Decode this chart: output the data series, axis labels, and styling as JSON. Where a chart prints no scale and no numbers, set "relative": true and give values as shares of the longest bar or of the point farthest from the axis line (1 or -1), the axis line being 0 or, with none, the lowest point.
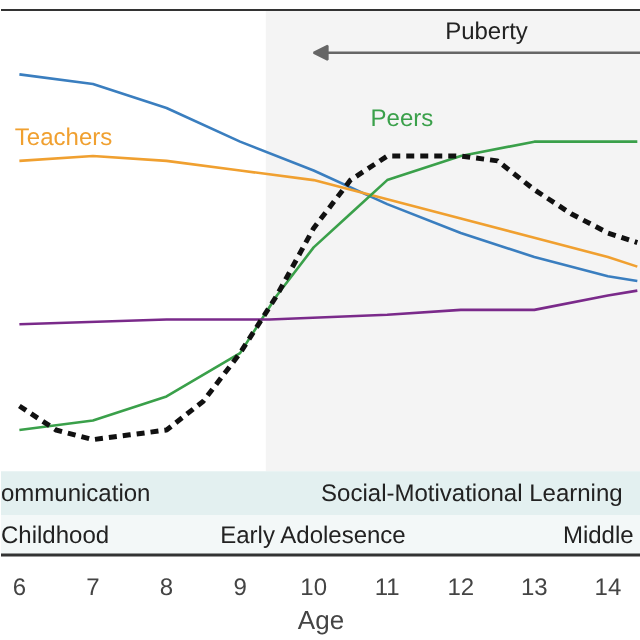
{
  "chart_data": {
    "type": "line",
    "relative": true,
    "xlabel": "Age",
    "xlim": [
      5.75,
      14.45
    ],
    "xticks": [
      6,
      7,
      8,
      9,
      10,
      11,
      12,
      13,
      14
    ],
    "grid": false,
    "series": [
      {
        "color": "#3a7ebf",
        "x": [
          6,
          7,
          8,
          9,
          10,
          11,
          12,
          13,
          14,
          14.4
        ],
        "values": [
          1.0,
          0.98,
          0.93,
          0.86,
          0.8,
          0.73,
          0.67,
          0.62,
          0.58,
          0.57
        ]
      },
      {
        "name": "Teachers",
        "color": "#f0a030",
        "x": [
          6,
          7,
          8,
          9,
          10,
          11,
          12,
          13,
          14,
          14.4
        ],
        "values": [
          0.82,
          0.83,
          0.82,
          0.8,
          0.78,
          0.74,
          0.7,
          0.66,
          0.62,
          0.6
        ]
      },
      {
        "name": "Peers",
        "color": "#3aa04a",
        "x": [
          6,
          7,
          8,
          9,
          9.5,
          10,
          10.5,
          11,
          12,
          13,
          14,
          14.4
        ],
        "values": [
          0.26,
          0.28,
          0.33,
          0.42,
          0.54,
          0.64,
          0.71,
          0.78,
          0.83,
          0.86,
          0.86,
          0.86
        ]
      },
      {
        "color": "#7a2a8a",
        "x": [
          6,
          8,
          9.4,
          11,
          12,
          13,
          14,
          14.4
        ],
        "values": [
          0.48,
          0.49,
          0.49,
          0.5,
          0.51,
          0.51,
          0.54,
          0.55
        ]
      },
      {
        "color": "#111111",
        "line_style": "dashed",
        "x": [
          6,
          6.5,
          7,
          7.5,
          8,
          8.5,
          9,
          9.5,
          10,
          10.5,
          11,
          11.5,
          12,
          12.5,
          13,
          13.5,
          14,
          14.4
        ],
        "values": [
          0.31,
          0.26,
          0.24,
          0.25,
          0.26,
          0.32,
          0.42,
          0.54,
          0.68,
          0.78,
          0.83,
          0.83,
          0.83,
          0.82,
          0.76,
          0.71,
          0.67,
          0.65
        ]
      }
    ],
    "bands": [
      {
        "axis": "x",
        "from": 9.35,
        "to": 14.45,
        "label": "Puberty",
        "color": "#f4f4f4"
      }
    ],
    "annotations": [
      "ommunication",
      "Social-Motivational Learning",
      "Childhood",
      "Early Adolesence",
      "Middle"
    ]
  }
}
